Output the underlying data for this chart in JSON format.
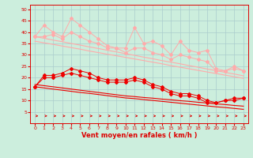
{
  "x": [
    0,
    1,
    2,
    3,
    4,
    5,
    6,
    7,
    8,
    9,
    10,
    11,
    12,
    13,
    14,
    15,
    16,
    17,
    18,
    19,
    20,
    21,
    22,
    23
  ],
  "line1": [
    38,
    43,
    40,
    38,
    46,
    43,
    40,
    37,
    34,
    33,
    33,
    42,
    35,
    36,
    34,
    30,
    36,
    32,
    31,
    32,
    24,
    23,
    25,
    23
  ],
  "line2": [
    38,
    38,
    39,
    37,
    40,
    38,
    36,
    35,
    33,
    33,
    31,
    33,
    33,
    31,
    30,
    28,
    30,
    29,
    28,
    27,
    23,
    23,
    24,
    23
  ],
  "line3_reg": [
    38,
    37.3,
    36.5,
    35.8,
    35.0,
    34.3,
    33.5,
    32.8,
    32.0,
    31.3,
    30.5,
    29.8,
    29.0,
    28.3,
    27.5,
    26.8,
    26.1,
    25.3,
    24.6,
    23.8,
    23.1,
    22.3,
    21.6,
    20.8
  ],
  "line4_reg": [
    36,
    35.3,
    34.6,
    33.9,
    33.2,
    32.5,
    31.7,
    31.0,
    30.3,
    29.6,
    28.9,
    28.2,
    27.5,
    26.8,
    26.1,
    25.3,
    24.6,
    23.9,
    23.2,
    22.5,
    21.8,
    21.1,
    20.4,
    19.7
  ],
  "line5": [
    16,
    21,
    21,
    22,
    24,
    23,
    22,
    20,
    19,
    19,
    19,
    20,
    19,
    17,
    16,
    14,
    13,
    13,
    12,
    10,
    9,
    10,
    11,
    11
  ],
  "line6": [
    16,
    20,
    20,
    21,
    22,
    21,
    20,
    19,
    18,
    18,
    18,
    19,
    18,
    16,
    15,
    13,
    12,
    12,
    11,
    9,
    9,
    10,
    10,
    11
  ],
  "line7_reg": [
    17,
    16.5,
    16.0,
    15.5,
    15.0,
    14.5,
    14.0,
    13.5,
    13.0,
    12.5,
    12.0,
    11.7,
    11.3,
    11.0,
    10.6,
    10.3,
    9.9,
    9.6,
    9.2,
    8.9,
    8.5,
    8.2,
    7.8,
    7.5
  ],
  "line8_reg": [
    16,
    15.5,
    15.0,
    14.5,
    14.0,
    13.5,
    13.1,
    12.6,
    12.1,
    11.6,
    11.1,
    10.8,
    10.4,
    10.0,
    9.6,
    9.2,
    8.8,
    8.4,
    8.0,
    7.6,
    7.2,
    6.9,
    6.5,
    6.1
  ],
  "light_pink": "#ffaaaa",
  "red": "#ee0000",
  "bg_color": "#cceedd",
  "grid_color": "#aacccc",
  "axis_color": "#dd0000",
  "xlabel": "Vent moyen/en rafales ( km/h )",
  "xlim": [
    -0.5,
    23.5
  ],
  "ylim": [
    0,
    52
  ],
  "yticks": [
    5,
    10,
    15,
    20,
    25,
    30,
    35,
    40,
    45,
    50
  ],
  "xticks": [
    0,
    1,
    2,
    3,
    4,
    5,
    6,
    7,
    8,
    9,
    10,
    11,
    12,
    13,
    14,
    15,
    16,
    17,
    18,
    19,
    20,
    21,
    22,
    23
  ]
}
